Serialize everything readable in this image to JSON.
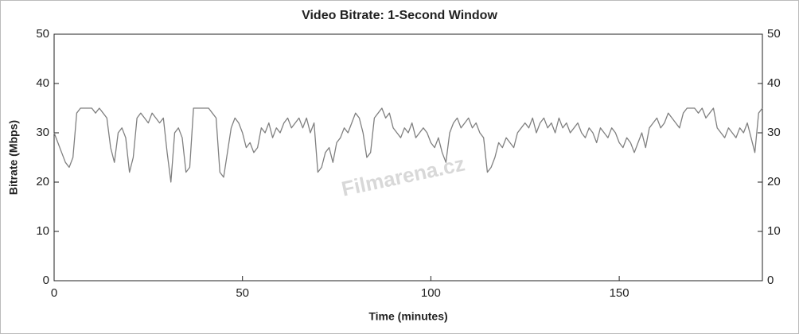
{
  "chart_data": {
    "type": "line",
    "title": "Video Bitrate: 1-Second Window",
    "xlabel": "Time (minutes)",
    "ylabel": "Bitrate (Mbps)",
    "watermark": "Filmarena.cz",
    "x": [
      0,
      1,
      2,
      3,
      4,
      5,
      6,
      7,
      8,
      9,
      10,
      11,
      12,
      13,
      14,
      15,
      16,
      17,
      18,
      19,
      20,
      21,
      22,
      23,
      24,
      25,
      26,
      27,
      28,
      29,
      30,
      31,
      32,
      33,
      34,
      35,
      36,
      37,
      38,
      39,
      40,
      41,
      42,
      43,
      44,
      45,
      46,
      47,
      48,
      49,
      50,
      51,
      52,
      53,
      54,
      55,
      56,
      57,
      58,
      59,
      60,
      61,
      62,
      63,
      64,
      65,
      66,
      67,
      68,
      69,
      70,
      71,
      72,
      73,
      74,
      75,
      76,
      77,
      78,
      79,
      80,
      81,
      82,
      83,
      84,
      85,
      86,
      87,
      88,
      89,
      90,
      91,
      92,
      93,
      94,
      95,
      96,
      97,
      98,
      99,
      100,
      101,
      102,
      103,
      104,
      105,
      106,
      107,
      108,
      109,
      110,
      111,
      112,
      113,
      114,
      115,
      116,
      117,
      118,
      119,
      120,
      121,
      122,
      123,
      124,
      125,
      126,
      127,
      128,
      129,
      130,
      131,
      132,
      133,
      134,
      135,
      136,
      137,
      138,
      139,
      140,
      141,
      142,
      143,
      144,
      145,
      146,
      147,
      148,
      149,
      150,
      151,
      152,
      153,
      154,
      155,
      156,
      157,
      158,
      159,
      160,
      161,
      162,
      163,
      164,
      165,
      166,
      167,
      168,
      169,
      170,
      171,
      172,
      173,
      174,
      175,
      176,
      177,
      178,
      179,
      180,
      181,
      182,
      183,
      184,
      185,
      186,
      187,
      188
    ],
    "series": [
      {
        "name": "Bitrate",
        "color": "#808080",
        "values": [
          30,
          28,
          26,
          24,
          23,
          25,
          34,
          35,
          35,
          35,
          35,
          34,
          35,
          34,
          33,
          27,
          24,
          30,
          31,
          29,
          22,
          25,
          33,
          34,
          33,
          32,
          34,
          33,
          32,
          33,
          26,
          20,
          30,
          31,
          29,
          22,
          23,
          35,
          35,
          35,
          35,
          35,
          34,
          33,
          22,
          21,
          26,
          31,
          33,
          32,
          30,
          27,
          28,
          26,
          27,
          31,
          30,
          32,
          29,
          31,
          30,
          32,
          33,
          31,
          32,
          33,
          31,
          33,
          30,
          32,
          22,
          23,
          26,
          27,
          24,
          28,
          29,
          31,
          30,
          32,
          34,
          33,
          30,
          25,
          26,
          33,
          34,
          35,
          33,
          34,
          31,
          30,
          29,
          31,
          30,
          32,
          29,
          30,
          31,
          30,
          28,
          27,
          29,
          26,
          24,
          30,
          32,
          33,
          31,
          32,
          33,
          31,
          32,
          30,
          29,
          22,
          23,
          25,
          28,
          27,
          29,
          28,
          27,
          30,
          31,
          32,
          31,
          33,
          30,
          32,
          33,
          31,
          32,
          30,
          33,
          31,
          32,
          30,
          31,
          32,
          30,
          29,
          31,
          30,
          28,
          31,
          30,
          29,
          31,
          30,
          28,
          27,
          29,
          28,
          26,
          28,
          30,
          27,
          31,
          32,
          33,
          31,
          32,
          34,
          33,
          32,
          31,
          34,
          35,
          35,
          35,
          34,
          35,
          33,
          34,
          35,
          31,
          30,
          29,
          31,
          30,
          29,
          31,
          30,
          32,
          29,
          26,
          34,
          35
        ]
      }
    ],
    "xlim": [
      0,
      188
    ],
    "ylim": [
      0,
      50
    ],
    "xticks": [
      0,
      50,
      100,
      150
    ],
    "yticks": [
      0,
      10,
      20,
      30,
      40,
      50
    ]
  }
}
